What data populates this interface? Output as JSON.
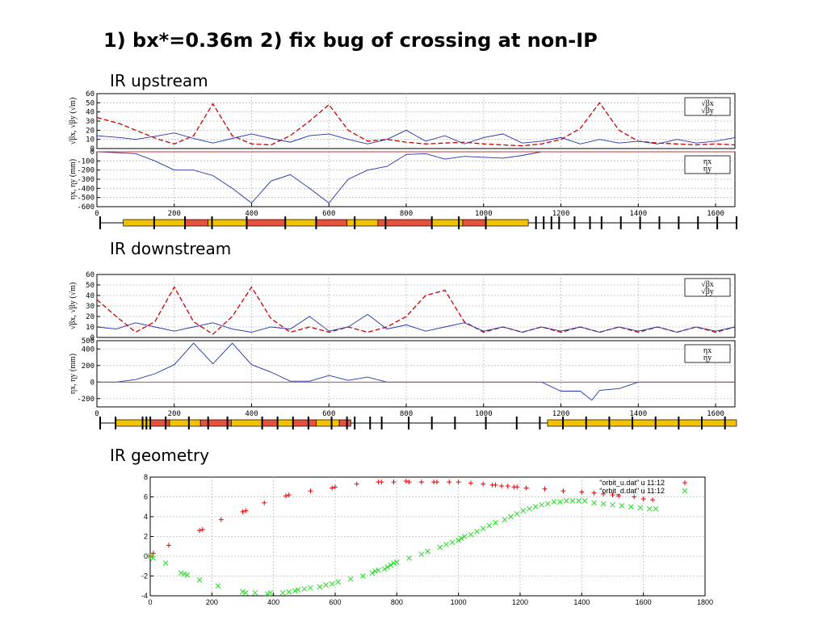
{
  "slide": {
    "title": "1) bx*=0.36m  2) fix bug of crossing at non-IP",
    "sections": [
      "IR upstream",
      "IR downstream",
      "IR geometry"
    ]
  },
  "chart_data": [
    {
      "type": "line",
      "panel": "IR upstream - beta",
      "ylabel": "√βx, √βy (√m)",
      "xlim": [
        0,
        1650
      ],
      "ylim": [
        0,
        60
      ],
      "yticks": [
        "0",
        "10",
        "20",
        "30",
        "40",
        "50",
        "60"
      ],
      "legend": [
        "√βx",
        "√βy"
      ],
      "legend_position": "top-right",
      "grid": true,
      "colors": {
        "x": "#cc0000",
        "y": "#2233aa"
      },
      "series": [
        {
          "name": "√βx",
          "x": [
            0,
            60,
            100,
            160,
            200,
            250,
            300,
            350,
            400,
            450,
            500,
            550,
            600,
            650,
            700,
            750,
            800,
            850,
            900,
            950,
            1000,
            1050,
            1100,
            1150,
            1200,
            1250,
            1300,
            1350,
            1400,
            1450,
            1500,
            1550,
            1600,
            1650
          ],
          "y": [
            34,
            27,
            20,
            10,
            5,
            14,
            49,
            14,
            5,
            4,
            14,
            30,
            48,
            20,
            8,
            10,
            7,
            5,
            6,
            7,
            5,
            4,
            3,
            5,
            10,
            22,
            50,
            20,
            8,
            6,
            5,
            4,
            5,
            4
          ]
        },
        {
          "name": "√βy",
          "x": [
            0,
            60,
            100,
            160,
            200,
            250,
            300,
            350,
            400,
            450,
            500,
            550,
            600,
            650,
            700,
            750,
            800,
            850,
            900,
            950,
            1000,
            1050,
            1100,
            1150,
            1200,
            1250,
            1300,
            1350,
            1400,
            1450,
            1500,
            1550,
            1600,
            1650
          ],
          "y": [
            14,
            12,
            10,
            14,
            17,
            11,
            6,
            11,
            16,
            11,
            7,
            14,
            16,
            10,
            5,
            10,
            20,
            8,
            14,
            5,
            12,
            16,
            6,
            8,
            12,
            5,
            10,
            6,
            8,
            5,
            10,
            6,
            8,
            12
          ]
        }
      ]
    },
    {
      "type": "line",
      "panel": "IR upstream - dispersion",
      "ylabel": "ηx, ηy (mm)",
      "xlabel": "",
      "xlim": [
        0,
        1650
      ],
      "ylim": [
        -600,
        0
      ],
      "yticks": [
        "0",
        "-100",
        "-200",
        "-300",
        "-400",
        "-500",
        "-600"
      ],
      "xticks": [
        "0",
        "200",
        "400",
        "600",
        "800",
        "1000",
        "1200",
        "1400",
        "1600"
      ],
      "legend": [
        "ηx",
        "ηy"
      ],
      "legend_position": "top-right",
      "grid": true,
      "series": [
        {
          "name": "ηx",
          "x": [
            0,
            100,
            150,
            200,
            250,
            300,
            350,
            400,
            450,
            500,
            550,
            600,
            650,
            700,
            750,
            800,
            850,
            900,
            950,
            1000,
            1050,
            1100,
            1150,
            1200,
            1650
          ],
          "y": [
            0,
            -20,
            -100,
            -200,
            -200,
            -260,
            -400,
            -560,
            -320,
            -250,
            -400,
            -560,
            -300,
            -200,
            -160,
            -30,
            -20,
            -80,
            -50,
            -60,
            -70,
            -40,
            0,
            0,
            0
          ]
        },
        {
          "name": "ηy",
          "x": [
            0,
            1650
          ],
          "y": [
            0,
            0
          ]
        }
      ]
    },
    {
      "type": "line",
      "panel": "IR downstream - beta",
      "ylabel": "√βx, √βy (√m)",
      "xlim": [
        0,
        1650
      ],
      "ylim": [
        0,
        60
      ],
      "yticks": [
        "0",
        "10",
        "20",
        "30",
        "40",
        "50",
        "60"
      ],
      "legend": [
        "√βx",
        "√βy"
      ],
      "legend_position": "top-right",
      "grid": true,
      "series": [
        {
          "name": "√βx",
          "x": [
            0,
            50,
            100,
            150,
            200,
            250,
            300,
            350,
            400,
            450,
            500,
            550,
            600,
            650,
            700,
            750,
            800,
            850,
            900,
            950,
            1000,
            1050,
            1100,
            1150,
            1200,
            1250,
            1300,
            1350,
            1400,
            1450,
            1500,
            1550,
            1600,
            1650
          ],
          "y": [
            36,
            20,
            5,
            15,
            48,
            15,
            3,
            20,
            48,
            18,
            5,
            10,
            5,
            10,
            5,
            10,
            20,
            40,
            45,
            15,
            5,
            10,
            5,
            10,
            5,
            10,
            5,
            10,
            5,
            10,
            5,
            10,
            5,
            10
          ]
        },
        {
          "name": "√βy",
          "x": [
            0,
            50,
            100,
            150,
            200,
            250,
            300,
            350,
            400,
            450,
            500,
            550,
            600,
            650,
            700,
            750,
            800,
            850,
            900,
            950,
            1000,
            1050,
            1100,
            1150,
            1200,
            1250,
            1300,
            1350,
            1400,
            1450,
            1500,
            1550,
            1600,
            1650
          ],
          "y": [
            10,
            8,
            14,
            10,
            6,
            10,
            14,
            8,
            5,
            10,
            8,
            20,
            6,
            10,
            22,
            8,
            12,
            6,
            10,
            14,
            6,
            10,
            5,
            10,
            6,
            10,
            5,
            10,
            6,
            10,
            5,
            10,
            6,
            10
          ]
        }
      ]
    },
    {
      "type": "line",
      "panel": "IR downstream - dispersion",
      "ylabel": "ηx, ηy (mm)",
      "xlim": [
        0,
        1650
      ],
      "ylim": [
        -300,
        500
      ],
      "yticks": [
        "500",
        "400",
        "200",
        "0",
        "-200"
      ],
      "xticks": [
        "0",
        "200",
        "400",
        "600",
        "800",
        "1000",
        "1200",
        "1400",
        "1600"
      ],
      "legend": [
        "ηx",
        "ηy"
      ],
      "legend_position": "top-right",
      "grid": true,
      "series": [
        {
          "name": "ηx",
          "x": [
            0,
            50,
            100,
            150,
            200,
            250,
            300,
            350,
            400,
            450,
            500,
            550,
            600,
            650,
            700,
            750,
            800,
            1150,
            1200,
            1250,
            1280,
            1300,
            1350,
            1400,
            1650
          ],
          "y": [
            0,
            0,
            30,
            100,
            210,
            470,
            220,
            470,
            210,
            120,
            10,
            10,
            80,
            20,
            60,
            0,
            0,
            0,
            -110,
            -110,
            -220,
            -100,
            -80,
            0,
            0
          ]
        },
        {
          "name": "ηy",
          "x": [
            0,
            1650
          ],
          "y": [
            0,
            0
          ]
        }
      ]
    },
    {
      "type": "scatter",
      "panel": "IR geometry",
      "xlim": [
        0,
        1800
      ],
      "ylim": [
        -4,
        8
      ],
      "xticks": [
        "0",
        "200",
        "400",
        "600",
        "800",
        "1000",
        "1200",
        "1400",
        "1600",
        "1800"
      ],
      "yticks": [
        "8",
        "6",
        "4",
        "2",
        "0",
        "-2",
        "-4"
      ],
      "legend_position": "top-right",
      "grid": true,
      "series": [
        {
          "name": "\"orbit_u.dat\" u 11:12",
          "marker": "+",
          "color": "#ee0000",
          "x": [
            0,
            10,
            60,
            160,
            170,
            230,
            300,
            310,
            370,
            440,
            450,
            520,
            590,
            600,
            670,
            740,
            750,
            790,
            830,
            840,
            880,
            920,
            930,
            970,
            1000,
            1040,
            1080,
            1110,
            1120,
            1140,
            1160,
            1180,
            1190,
            1220,
            1280,
            1340,
            1400,
            1440,
            1470,
            1500,
            1520,
            1570,
            1600,
            1630
          ],
          "y": [
            0,
            0.3,
            1.1,
            2.6,
            2.7,
            3.7,
            4.5,
            4.6,
            5.4,
            6.1,
            6.2,
            6.6,
            6.9,
            7.0,
            7.3,
            7.5,
            7.5,
            7.5,
            7.6,
            7.5,
            7.5,
            7.5,
            7.5,
            7.5,
            7.5,
            7.4,
            7.3,
            7.2,
            7.2,
            7.1,
            7.1,
            7.0,
            7.0,
            6.9,
            6.8,
            6.6,
            6.5,
            6.4,
            6.3,
            6.2,
            6.1,
            6.0,
            5.8,
            5.7
          ]
        },
        {
          "name": "\"orbit_d.dat\" u 11:12",
          "marker": "x",
          "color": "#22dd22",
          "x": [
            0,
            10,
            50,
            100,
            110,
            120,
            160,
            220,
            300,
            310,
            340,
            380,
            390,
            430,
            450,
            470,
            480,
            500,
            520,
            550,
            570,
            590,
            610,
            650,
            690,
            720,
            730,
            740,
            760,
            770,
            780,
            790,
            800,
            840,
            880,
            900,
            940,
            960,
            980,
            1000,
            1010,
            1020,
            1040,
            1060,
            1080,
            1100,
            1120,
            1150,
            1170,
            1190,
            1210,
            1230,
            1250,
            1270,
            1290,
            1310,
            1330,
            1350,
            1370,
            1390,
            1410,
            1440,
            1470,
            1500,
            1530,
            1560,
            1590,
            1620,
            1640
          ],
          "y": [
            0,
            -0.2,
            -0.7,
            -1.7,
            -1.8,
            -1.9,
            -2.4,
            -3.0,
            -3.6,
            -3.7,
            -3.7,
            -3.8,
            -3.7,
            -3.7,
            -3.6,
            -3.5,
            -3.4,
            -3.3,
            -3.2,
            -3.1,
            -2.9,
            -2.8,
            -2.6,
            -2.3,
            -2.0,
            -1.7,
            -1.5,
            -1.4,
            -1.3,
            -1.1,
            -0.9,
            -0.7,
            -0.6,
            -0.2,
            0.2,
            0.5,
            0.9,
            1.2,
            1.4,
            1.6,
            1.8,
            2.0,
            2.2,
            2.5,
            2.8,
            3.1,
            3.4,
            3.7,
            4.0,
            4.3,
            4.6,
            4.8,
            5.0,
            5.2,
            5.3,
            5.5,
            5.5,
            5.6,
            5.6,
            5.6,
            5.6,
            5.4,
            5.3,
            5.2,
            5.1,
            5.0,
            4.9,
            4.8,
            4.8
          ]
        }
      ]
    }
  ],
  "lattice": {
    "upstream": [
      {
        "kind": "dipole",
        "x0": 60,
        "x1": 220
      },
      {
        "kind": "bend",
        "x0": 220,
        "x1": 280
      },
      {
        "kind": "dipole",
        "x0": 280,
        "x1": 380
      },
      {
        "kind": "bend",
        "x0": 380,
        "x1": 480
      },
      {
        "kind": "dipole",
        "x0": 480,
        "x1": 560
      },
      {
        "kind": "bend",
        "x0": 560,
        "x1": 640
      },
      {
        "kind": "dipole",
        "x0": 640,
        "x1": 720
      },
      {
        "kind": "bend",
        "x0": 720,
        "x1": 860
      },
      {
        "kind": "dipole",
        "x0": 860,
        "x1": 940
      },
      {
        "kind": "bend",
        "x0": 940,
        "x1": 1000
      },
      {
        "kind": "dipole",
        "x0": 1000,
        "x1": 1110
      }
    ],
    "downstream": [
      {
        "kind": "dipole",
        "x0": 40,
        "x1": 130
      },
      {
        "kind": "bend",
        "x0": 130,
        "x1": 180
      },
      {
        "kind": "dipole",
        "x0": 180,
        "x1": 260
      },
      {
        "kind": "bend",
        "x0": 260,
        "x1": 340
      },
      {
        "kind": "dipole",
        "x0": 340,
        "x1": 420
      },
      {
        "kind": "bend",
        "x0": 420,
        "x1": 460
      },
      {
        "kind": "dipole",
        "x0": 460,
        "x1": 500
      },
      {
        "kind": "bend",
        "x0": 500,
        "x1": 560
      },
      {
        "kind": "dipole",
        "x0": 560,
        "x1": 620
      },
      {
        "kind": "bend",
        "x0": 620,
        "x1": 650
      },
      {
        "kind": "dipole",
        "x0": 1160,
        "x1": 1650
      }
    ],
    "colors": {
      "dipole": "#f2c200",
      "bend": "#e8523a"
    }
  }
}
